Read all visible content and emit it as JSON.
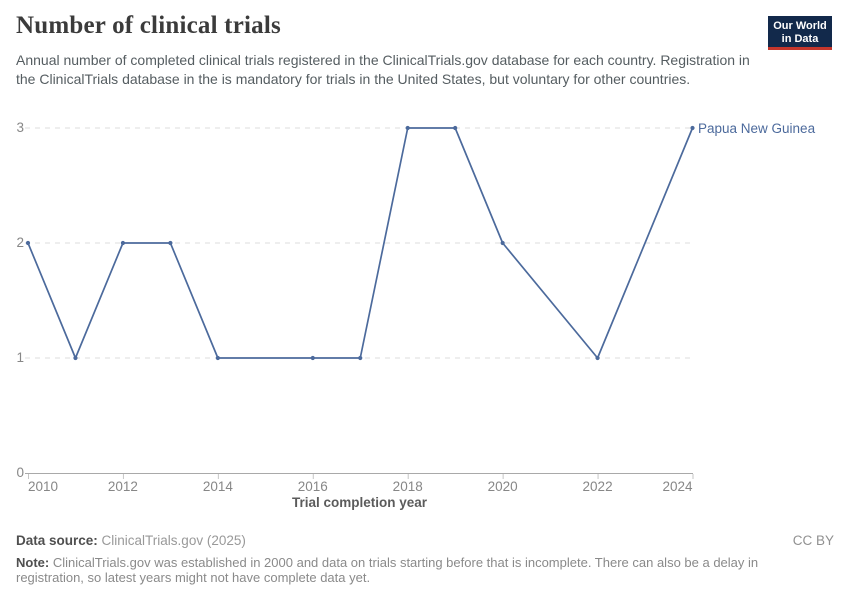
{
  "header": {
    "title": "Number of clinical trials",
    "subtitle": "Annual number of completed clinical trials registered in the ClinicalTrials.gov database for each country. Registration in the ClinicalTrials database in the is mandatory for trials in the United States, but voluntary for other countries.",
    "logo": {
      "line1": "Our World",
      "line2": "in Data"
    }
  },
  "chart_data": {
    "type": "line",
    "title": "Number of clinical trials",
    "xlabel": "Trial completion year",
    "ylabel": "",
    "xlim": [
      2010,
      2024
    ],
    "ylim": [
      0,
      3
    ],
    "x_ticks": [
      2010,
      2012,
      2014,
      2016,
      2018,
      2020,
      2022,
      2024
    ],
    "y_ticks": [
      0,
      1,
      2,
      3
    ],
    "grid": "horizontal-dashed",
    "legend_position": "end-of-line-label",
    "series": [
      {
        "name": "Papua New Guinea",
        "color": "#4C6A9C",
        "points": [
          [
            2010,
            2
          ],
          [
            2011,
            1
          ],
          [
            2012,
            2
          ],
          [
            2013,
            2
          ],
          [
            2014,
            1
          ],
          [
            2016,
            1
          ],
          [
            2017,
            1
          ],
          [
            2018,
            3
          ],
          [
            2019,
            3
          ],
          [
            2020,
            2
          ],
          [
            2022,
            1
          ],
          [
            2024,
            3
          ]
        ]
      }
    ]
  },
  "footer": {
    "data_source_label": "Data source:",
    "data_source_value": "ClinicalTrials.gov (2025)",
    "license": "CC BY",
    "note_label": "Note:",
    "note_value": "ClinicalTrials.gov was established in 2000 and data on trials starting before that is incomplete. There can also be a delay in registration, so latest years might not have complete data yet."
  }
}
